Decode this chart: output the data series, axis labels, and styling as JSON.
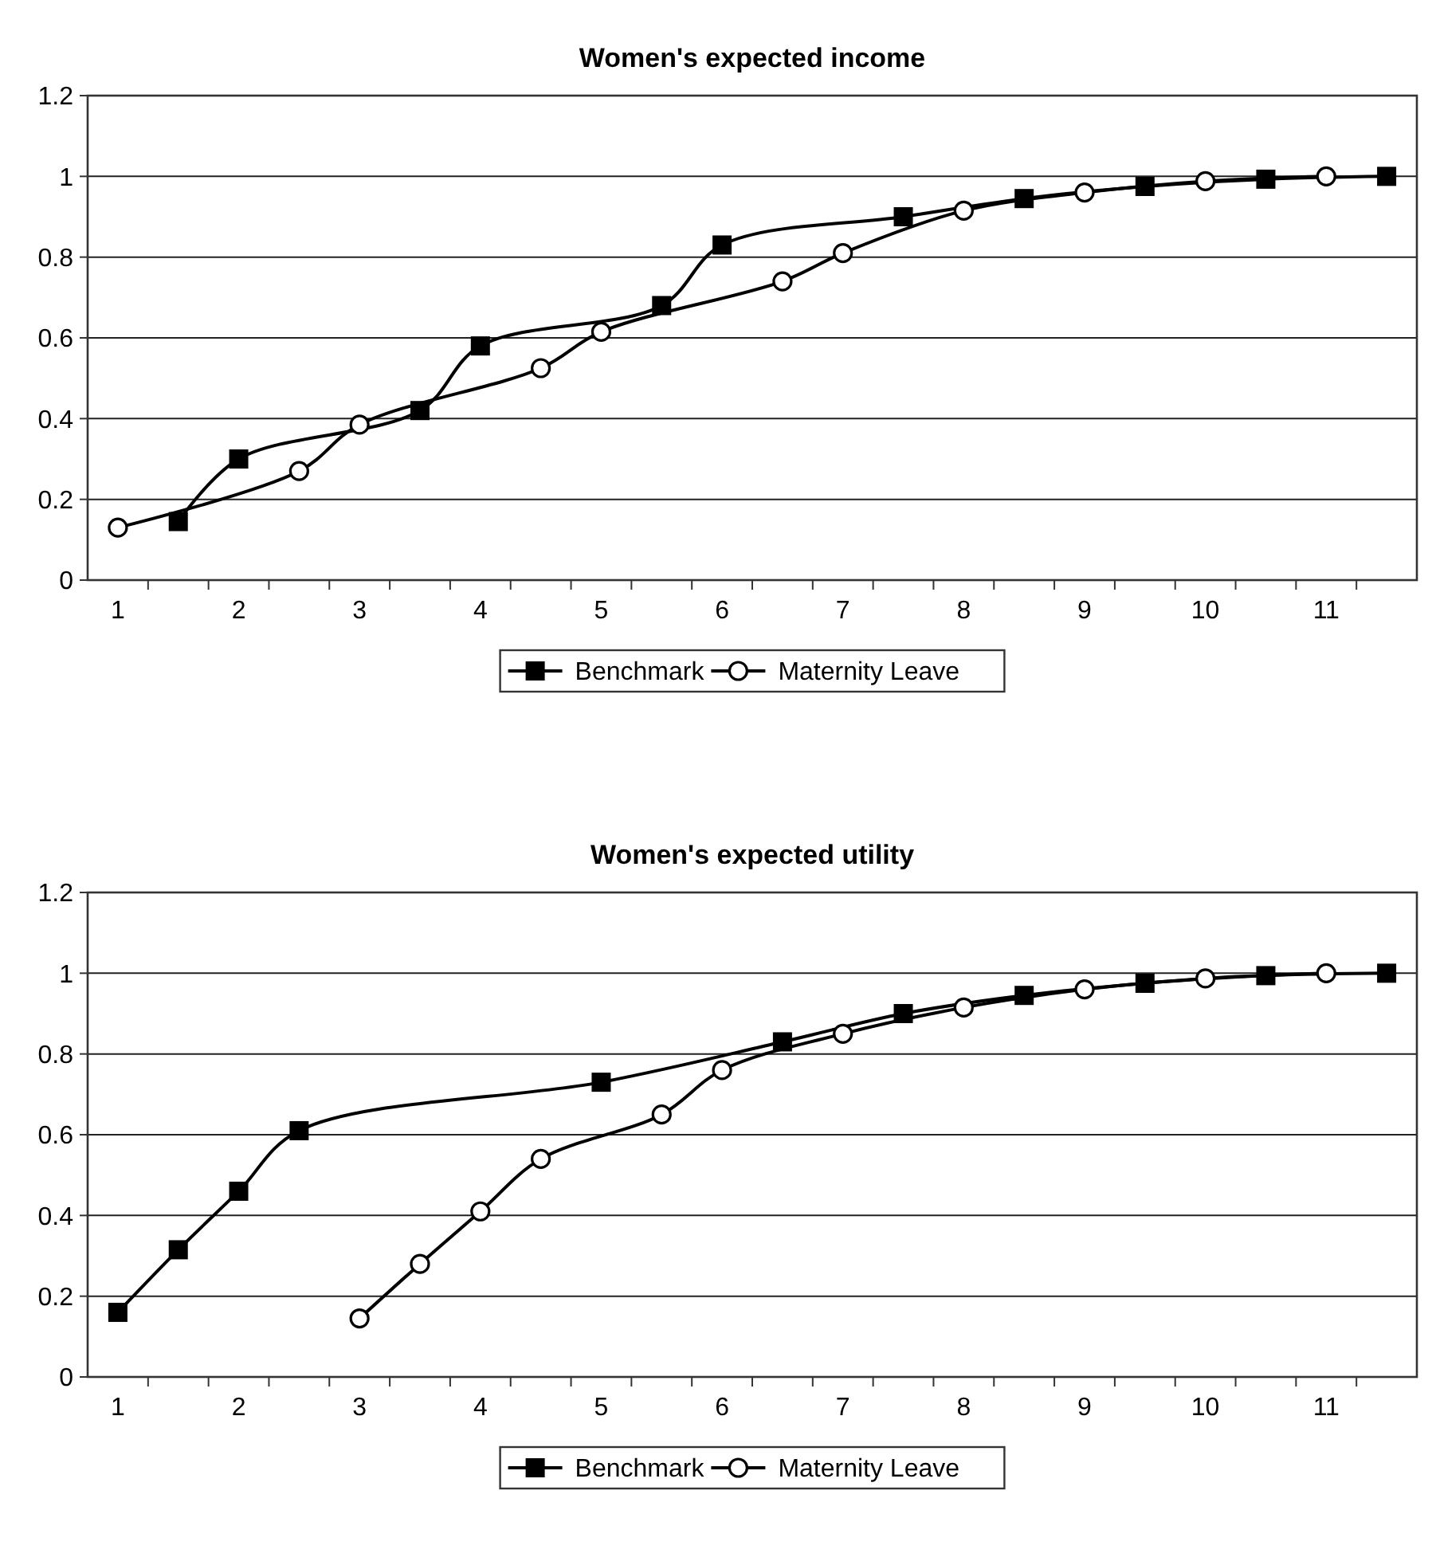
{
  "chart_data": [
    {
      "type": "line",
      "title": "Women's expected income",
      "xlim": [
        0.75,
        11.75
      ],
      "xticks": [
        {
          "value": 1,
          "label": "1"
        },
        {
          "value": 1.25,
          "label": null
        },
        {
          "value": 1.75,
          "label": null
        },
        {
          "value": 2,
          "label": "2"
        },
        {
          "value": 2.25,
          "label": null
        },
        {
          "value": 2.75,
          "label": null
        },
        {
          "value": 3,
          "label": "3"
        },
        {
          "value": 3.25,
          "label": null
        },
        {
          "value": 3.75,
          "label": null
        },
        {
          "value": 4,
          "label": "4"
        },
        {
          "value": 4.25,
          "label": null
        },
        {
          "value": 4.75,
          "label": null
        },
        {
          "value": 5,
          "label": "5"
        },
        {
          "value": 5.25,
          "label": null
        },
        {
          "value": 5.75,
          "label": null
        },
        {
          "value": 6,
          "label": "6"
        },
        {
          "value": 6.25,
          "label": null
        },
        {
          "value": 6.75,
          "label": null
        },
        {
          "value": 7,
          "label": "7"
        },
        {
          "value": 7.25,
          "label": null
        },
        {
          "value": 7.75,
          "label": null
        },
        {
          "value": 8,
          "label": "8"
        },
        {
          "value": 8.25,
          "label": null
        },
        {
          "value": 8.75,
          "label": null
        },
        {
          "value": 9,
          "label": "9"
        },
        {
          "value": 9.25,
          "label": null
        },
        {
          "value": 9.75,
          "label": null
        },
        {
          "value": 10,
          "label": "10"
        },
        {
          "value": 10.25,
          "label": null
        },
        {
          "value": 10.75,
          "label": null
        },
        {
          "value": 11,
          "label": "11"
        },
        {
          "value": 11.25,
          "label": null
        }
      ],
      "ylim": [
        0,
        1.2
      ],
      "yticks": [
        0,
        0.2,
        0.4,
        0.6,
        0.8,
        1,
        1.2
      ],
      "grid": "y",
      "legend": "bottom",
      "series": [
        {
          "name": "Benchmark",
          "color": "#000000",
          "marker": "square",
          "x": [
            1.5,
            2,
            3.5,
            4,
            5.5,
            6,
            7.5,
            8.5,
            9.5,
            10.5,
            11.5
          ],
          "values": [
            0.145,
            0.3,
            0.42,
            0.58,
            0.68,
            0.83,
            0.9,
            0.945,
            0.975,
            0.993,
            1.0
          ]
        },
        {
          "name": "Maternity Leave",
          "color": "#000000",
          "marker": "circle",
          "x": [
            1,
            2.5,
            3,
            4.5,
            5,
            6.5,
            7,
            8,
            9,
            10,
            11
          ],
          "values": [
            0.13,
            0.27,
            0.385,
            0.525,
            0.615,
            0.74,
            0.81,
            0.915,
            0.96,
            0.988,
            1.0
          ]
        }
      ]
    },
    {
      "type": "line",
      "title": "Women's expected utility",
      "xlim": [
        0.75,
        11.75
      ],
      "xticks": [
        {
          "value": 1,
          "label": "1"
        },
        {
          "value": 1.25,
          "label": null
        },
        {
          "value": 1.75,
          "label": null
        },
        {
          "value": 2,
          "label": "2"
        },
        {
          "value": 2.25,
          "label": null
        },
        {
          "value": 2.75,
          "label": null
        },
        {
          "value": 3,
          "label": "3"
        },
        {
          "value": 3.25,
          "label": null
        },
        {
          "value": 3.75,
          "label": null
        },
        {
          "value": 4,
          "label": "4"
        },
        {
          "value": 4.25,
          "label": null
        },
        {
          "value": 4.75,
          "label": null
        },
        {
          "value": 5,
          "label": "5"
        },
        {
          "value": 5.25,
          "label": null
        },
        {
          "value": 5.75,
          "label": null
        },
        {
          "value": 6,
          "label": "6"
        },
        {
          "value": 6.25,
          "label": null
        },
        {
          "value": 6.75,
          "label": null
        },
        {
          "value": 7,
          "label": "7"
        },
        {
          "value": 7.25,
          "label": null
        },
        {
          "value": 7.75,
          "label": null
        },
        {
          "value": 8,
          "label": "8"
        },
        {
          "value": 8.25,
          "label": null
        },
        {
          "value": 8.75,
          "label": null
        },
        {
          "value": 9,
          "label": "9"
        },
        {
          "value": 9.25,
          "label": null
        },
        {
          "value": 9.75,
          "label": null
        },
        {
          "value": 10,
          "label": "10"
        },
        {
          "value": 10.25,
          "label": null
        },
        {
          "value": 10.75,
          "label": null
        },
        {
          "value": 11,
          "label": "11"
        },
        {
          "value": 11.25,
          "label": null
        }
      ],
      "ylim": [
        0,
        1.2
      ],
      "yticks": [
        0,
        0.2,
        0.4,
        0.6,
        0.8,
        1,
        1.2
      ],
      "grid": "y",
      "legend": "bottom",
      "series": [
        {
          "name": "Benchmark",
          "color": "#000000",
          "marker": "square",
          "x": [
            1,
            1.5,
            2,
            2.5,
            5,
            6.5,
            7.5,
            8.5,
            9.5,
            10.5,
            11.5
          ],
          "values": [
            0.16,
            0.315,
            0.46,
            0.61,
            0.73,
            0.83,
            0.9,
            0.945,
            0.975,
            0.994,
            1.0
          ]
        },
        {
          "name": "Maternity Leave",
          "color": "#000000",
          "marker": "circle",
          "x": [
            3,
            3.5,
            4,
            4.5,
            5.5,
            6,
            7,
            8,
            9,
            10,
            11
          ],
          "values": [
            0.145,
            0.28,
            0.41,
            0.54,
            0.65,
            0.76,
            0.85,
            0.915,
            0.96,
            0.987,
            1.0
          ]
        }
      ]
    }
  ]
}
